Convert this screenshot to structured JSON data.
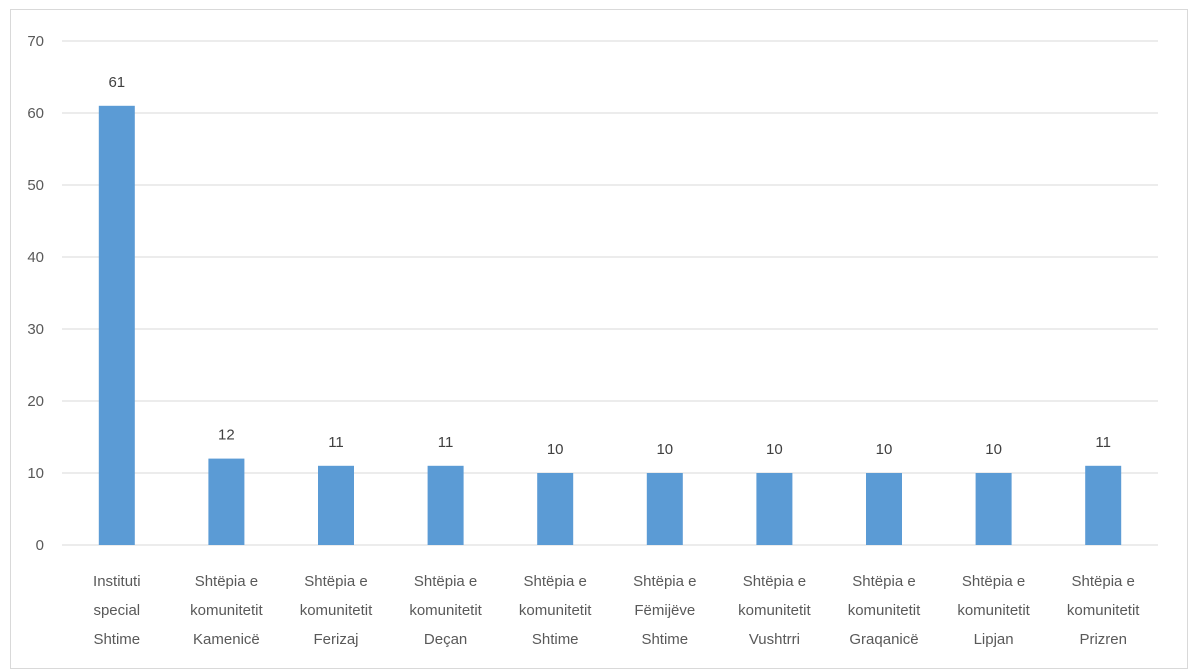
{
  "chart_data": {
    "type": "bar",
    "title": "",
    "xlabel": "",
    "ylabel": "",
    "ylim": [
      0,
      70
    ],
    "yticks": [
      0,
      10,
      20,
      30,
      40,
      50,
      60,
      70
    ],
    "grid": true,
    "bar_color": "#5b9bd5",
    "categories": [
      [
        "Instituti",
        "special",
        "Shtime"
      ],
      [
        "Shtëpia e",
        "komunitetit",
        "Kamenicë"
      ],
      [
        "Shtëpia e",
        "komunitetit",
        "Ferizaj"
      ],
      [
        "Shtëpia e",
        "komunitetit",
        "Deçan"
      ],
      [
        "Shtëpia e",
        "komunitetit",
        "Shtime"
      ],
      [
        "Shtëpia e",
        "Fëmijëve",
        "Shtime"
      ],
      [
        "Shtëpia e",
        "komunitetit",
        "Vushtrri"
      ],
      [
        "Shtëpia e",
        "komunitetit",
        "Graqanicë"
      ],
      [
        "Shtëpia e",
        "komunitetit",
        "Lipjan"
      ],
      [
        "Shtëpia e",
        "komunitetit",
        "Prizren"
      ]
    ],
    "values": [
      61,
      12,
      11,
      11,
      10,
      10,
      10,
      10,
      10,
      11
    ]
  }
}
